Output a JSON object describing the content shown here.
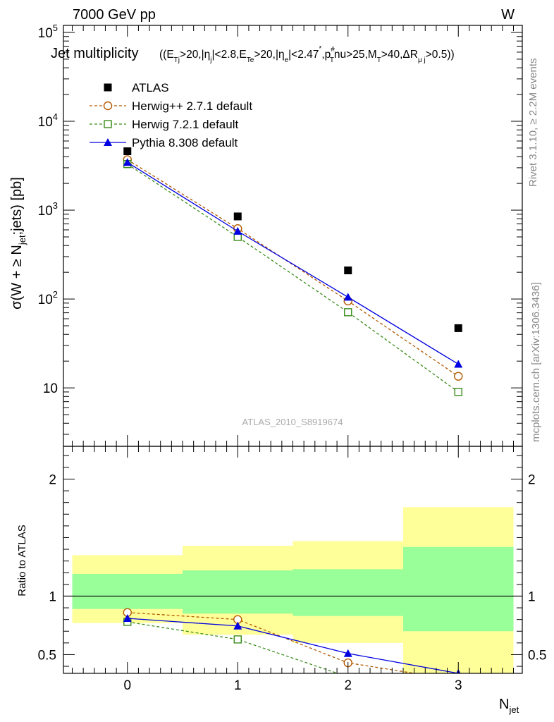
{
  "header": {
    "left": "7000 GeV pp",
    "right": "W",
    "title_main": "Jet multiplicity",
    "title_sub": "((E_Tj>20,|η_j|<2.8,E_Te>20,|η_e|<2.47^*,p_T^#nu>25,M_T>40,ΔR_μj>0.5))"
  },
  "side_labels": {
    "rivet": "Rivet 3.1.10, ≥ 2.2M events",
    "mcplots": "mcplots.cern.ch [arXiv:1306.3436]"
  },
  "watermark": "ATLAS_2010_S8919674",
  "colors": {
    "atlas": "#000000",
    "herwigpp": "#b35900",
    "herwig7": "#3a8c1a",
    "pythia": "#0000e0",
    "band_outer": "#ffff99",
    "band_inner": "#99ff99"
  },
  "chart_data": [
    {
      "type": "scatter",
      "panel": "main",
      "ylog": true,
      "ylabel": "σ(W + ≥ N_jet;jets) [pb]",
      "xlim": [
        -0.58,
        3.58
      ],
      "ylim": [
        2.2,
        120000
      ],
      "yticks": [
        {
          "value": 10,
          "label": "10"
        },
        {
          "value": 100,
          "label": "10^2"
        },
        {
          "value": 1000,
          "label": "10^3"
        },
        {
          "value": 10000,
          "label": "10^4"
        },
        {
          "value": 100000,
          "label": "10^5"
        }
      ],
      "legend_position": "top-left",
      "x": [
        0,
        1,
        2,
        3
      ],
      "series": [
        {
          "name": "ATLAS",
          "marker": "square-filled",
          "line": "none",
          "values": [
            4600,
            850,
            210,
            47
          ]
        },
        {
          "name": "Herwig++ 2.7.1 default",
          "marker": "circle-open",
          "line": "dashed",
          "values": [
            3700,
            620,
            95,
            13.5
          ]
        },
        {
          "name": "Herwig 7.2.1 default",
          "marker": "square-open",
          "line": "dashed",
          "values": [
            3300,
            500,
            71,
            9
          ]
        },
        {
          "name": "Pythia 8.308 default",
          "marker": "triangle-filled",
          "line": "solid",
          "values": [
            3450,
            580,
            105,
            18.5
          ]
        }
      ]
    },
    {
      "type": "line",
      "panel": "ratio",
      "ylabel": "Ratio to ATLAS",
      "xlabel": "N_jet",
      "xlim": [
        -0.58,
        3.58
      ],
      "ylim": [
        0.34,
        2.28
      ],
      "yticks": [
        0.5,
        1,
        2
      ],
      "xticks": [
        0,
        1,
        2,
        3
      ],
      "reference_line": 1,
      "bands": [
        {
          "x0": -0.5,
          "x1": 0.5,
          "inner": [
            0.89,
            1.19
          ],
          "outer": [
            0.77,
            1.35
          ]
        },
        {
          "x0": 0.5,
          "x1": 1.5,
          "inner": [
            0.85,
            1.22
          ],
          "outer": [
            0.67,
            1.43
          ]
        },
        {
          "x0": 1.5,
          "x1": 2.5,
          "inner": [
            0.83,
            1.23
          ],
          "outer": [
            0.6,
            1.47
          ]
        },
        {
          "x0": 2.5,
          "x1": 3.5,
          "inner": [
            0.7,
            1.42
          ],
          "outer": [
            0.2,
            1.76
          ]
        }
      ],
      "x": [
        0,
        1,
        2,
        3
      ],
      "series": [
        {
          "name": "Herwig++ 2.7.1 default",
          "values": [
            0.86,
            0.8,
            0.43,
            0.28
          ]
        },
        {
          "name": "Herwig 7.2.1 default",
          "values": [
            0.78,
            0.63,
            0.31,
            0.19
          ]
        },
        {
          "name": "Pythia 8.308 default",
          "values": [
            0.81,
            0.745,
            0.51,
            0.34
          ]
        }
      ]
    }
  ]
}
